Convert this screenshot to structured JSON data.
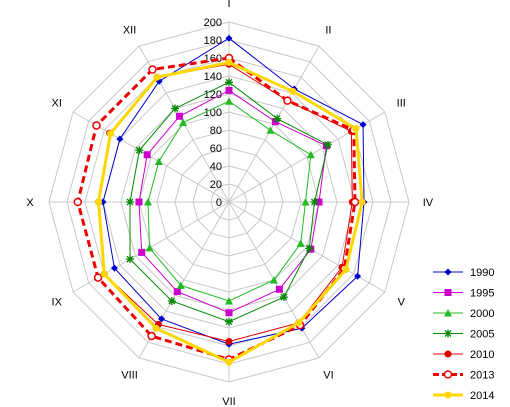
{
  "chart_data": {
    "type": "radar",
    "title": "",
    "categories": [
      "I",
      "II",
      "III",
      "IV",
      "V",
      "VI",
      "VII",
      "VIII",
      "IX",
      "X",
      "XI",
      "XII"
    ],
    "rlim": [
      0,
      200
    ],
    "rticks": [
      0,
      20,
      40,
      60,
      80,
      100,
      120,
      140,
      160,
      180,
      200
    ],
    "tick_labels": [
      "0",
      "20",
      "40",
      "60",
      "80",
      "100",
      "120",
      "140",
      "160",
      "180",
      "200"
    ],
    "grid": true,
    "legend_position": "bottom-right",
    "series": [
      {
        "name": "1990",
        "color": "#0000CC",
        "marker": "diamond",
        "dashed": false,
        "width": 1,
        "values": [
          182,
          145,
          172,
          150,
          165,
          162,
          158,
          150,
          147,
          140,
          140,
          155
        ]
      },
      {
        "name": "1995",
        "color": "#CC00CC",
        "marker": "square",
        "dashed": false,
        "width": 1,
        "values": [
          124,
          103,
          125,
          100,
          105,
          112,
          123,
          115,
          112,
          100,
          105,
          110
        ]
      },
      {
        "name": "2000",
        "color": "#22BB22",
        "marker": "triangle",
        "dashed": false,
        "width": 1,
        "values": [
          112,
          92,
          105,
          85,
          92,
          100,
          110,
          107,
          102,
          90,
          90,
          102
        ]
      },
      {
        "name": "2005",
        "color": "#008800",
        "marker": "star",
        "dashed": false,
        "width": 1,
        "values": [
          133,
          107,
          127,
          95,
          103,
          122,
          133,
          127,
          127,
          110,
          115,
          120
        ]
      },
      {
        "name": "2010",
        "color": "#DD0000",
        "marker": "circle",
        "dashed": false,
        "width": 1,
        "values": [
          153,
          130,
          157,
          137,
          145,
          155,
          155,
          157,
          160,
          145,
          153,
          160
        ]
      },
      {
        "name": "2013",
        "color": "#EE0000",
        "marker": "circle-open",
        "dashed": true,
        "width": 3,
        "values": [
          160,
          130,
          160,
          140,
          148,
          158,
          175,
          172,
          168,
          168,
          170,
          170
        ]
      },
      {
        "name": "2014",
        "color": "#FFD700",
        "marker": "circle",
        "dashed": false,
        "width": 3,
        "values": [
          155,
          142,
          163,
          148,
          150,
          155,
          178,
          162,
          160,
          145,
          152,
          160
        ]
      }
    ]
  }
}
